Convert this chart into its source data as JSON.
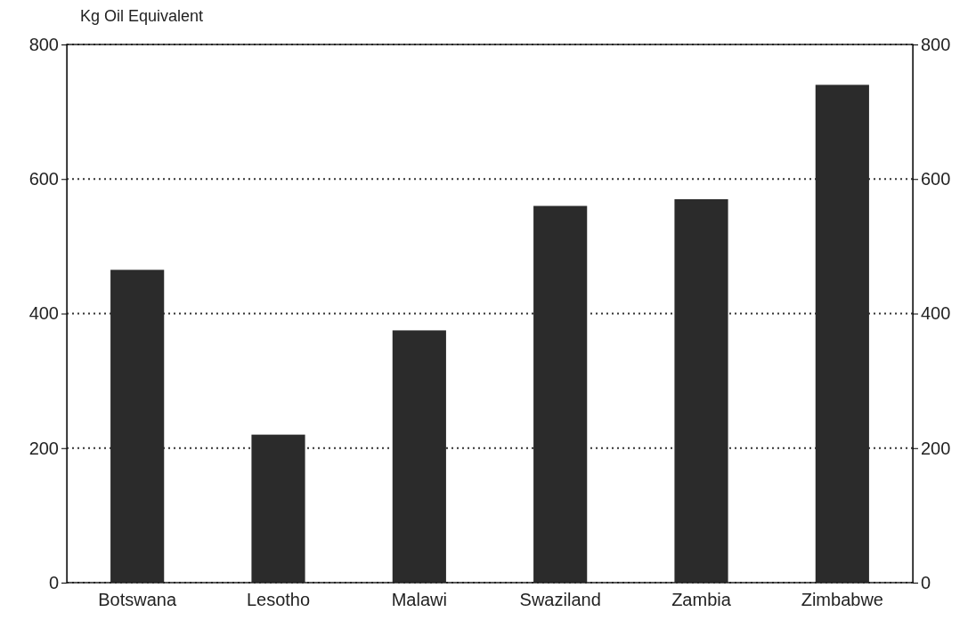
{
  "chart_data": {
    "type": "bar",
    "ylabel": "Kg Oil Equivalent",
    "categories": [
      "Botswana",
      "Lesotho",
      "Malawi",
      "Swaziland",
      "Zambia",
      "Zimbabwe"
    ],
    "values": [
      465,
      220,
      375,
      560,
      570,
      740
    ],
    "color": "#2b2b2b",
    "ylim": [
      0,
      800
    ],
    "yticks": [
      0,
      200,
      400,
      600,
      800
    ],
    "y2lim": [
      0,
      800
    ],
    "y2ticks": [
      0,
      200,
      400,
      600,
      800
    ],
    "grid": "y"
  }
}
